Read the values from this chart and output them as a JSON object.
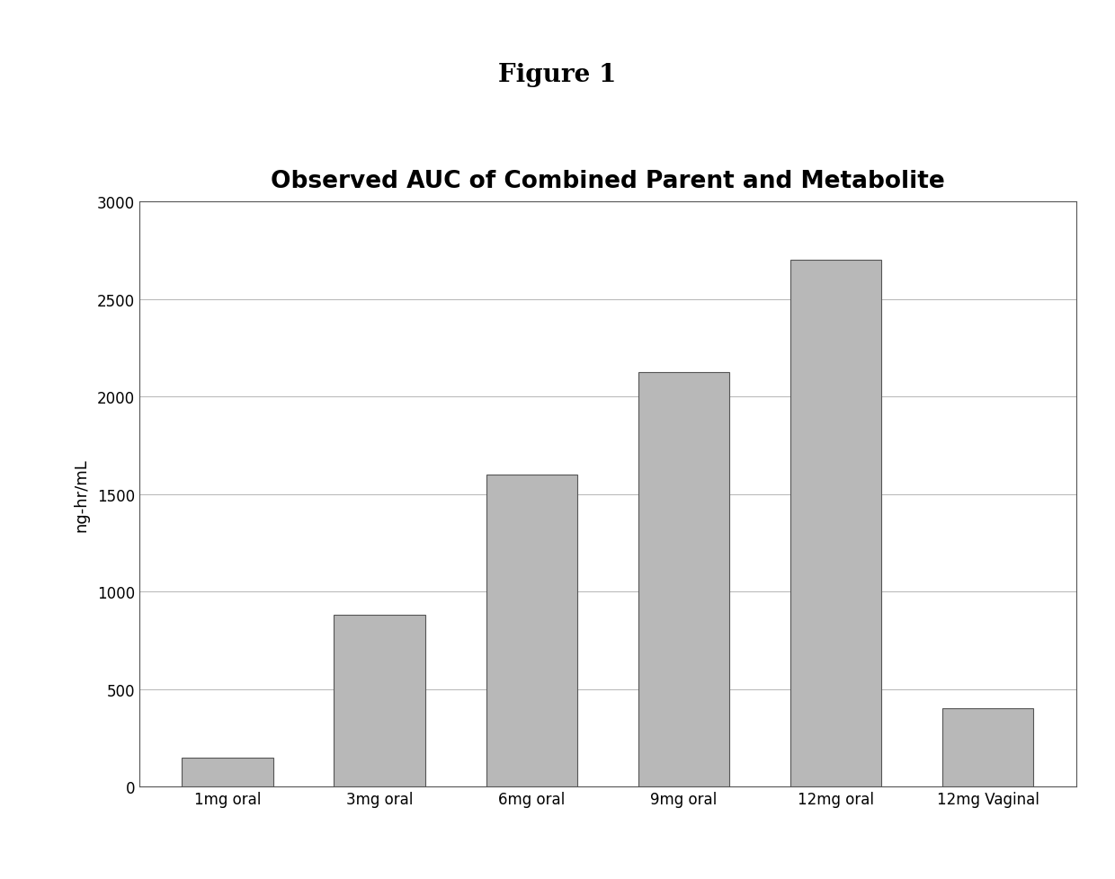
{
  "title": "Observed AUC of Combined Parent and Metabolite",
  "figure_title": "Figure 1",
  "categories": [
    "1mg oral",
    "3mg oral",
    "6mg oral",
    "9mg oral",
    "12mg oral",
    "12mg Vaginal"
  ],
  "values": [
    150,
    880,
    1600,
    2125,
    2700,
    400
  ],
  "bar_color": "#b8b8b8",
  "bar_edgecolor": "#555555",
  "ylabel": "ng-hr/mL",
  "ylim": [
    0,
    3000
  ],
  "yticks": [
    0,
    500,
    1000,
    1500,
    2000,
    2500,
    3000
  ],
  "title_fontsize": 19,
  "figure_title_fontsize": 20,
  "axis_label_fontsize": 13,
  "tick_fontsize": 12,
  "background_color": "#ffffff",
  "plot_bg_color": "#ffffff",
  "grid_color": "#999999",
  "bar_width": 0.6
}
